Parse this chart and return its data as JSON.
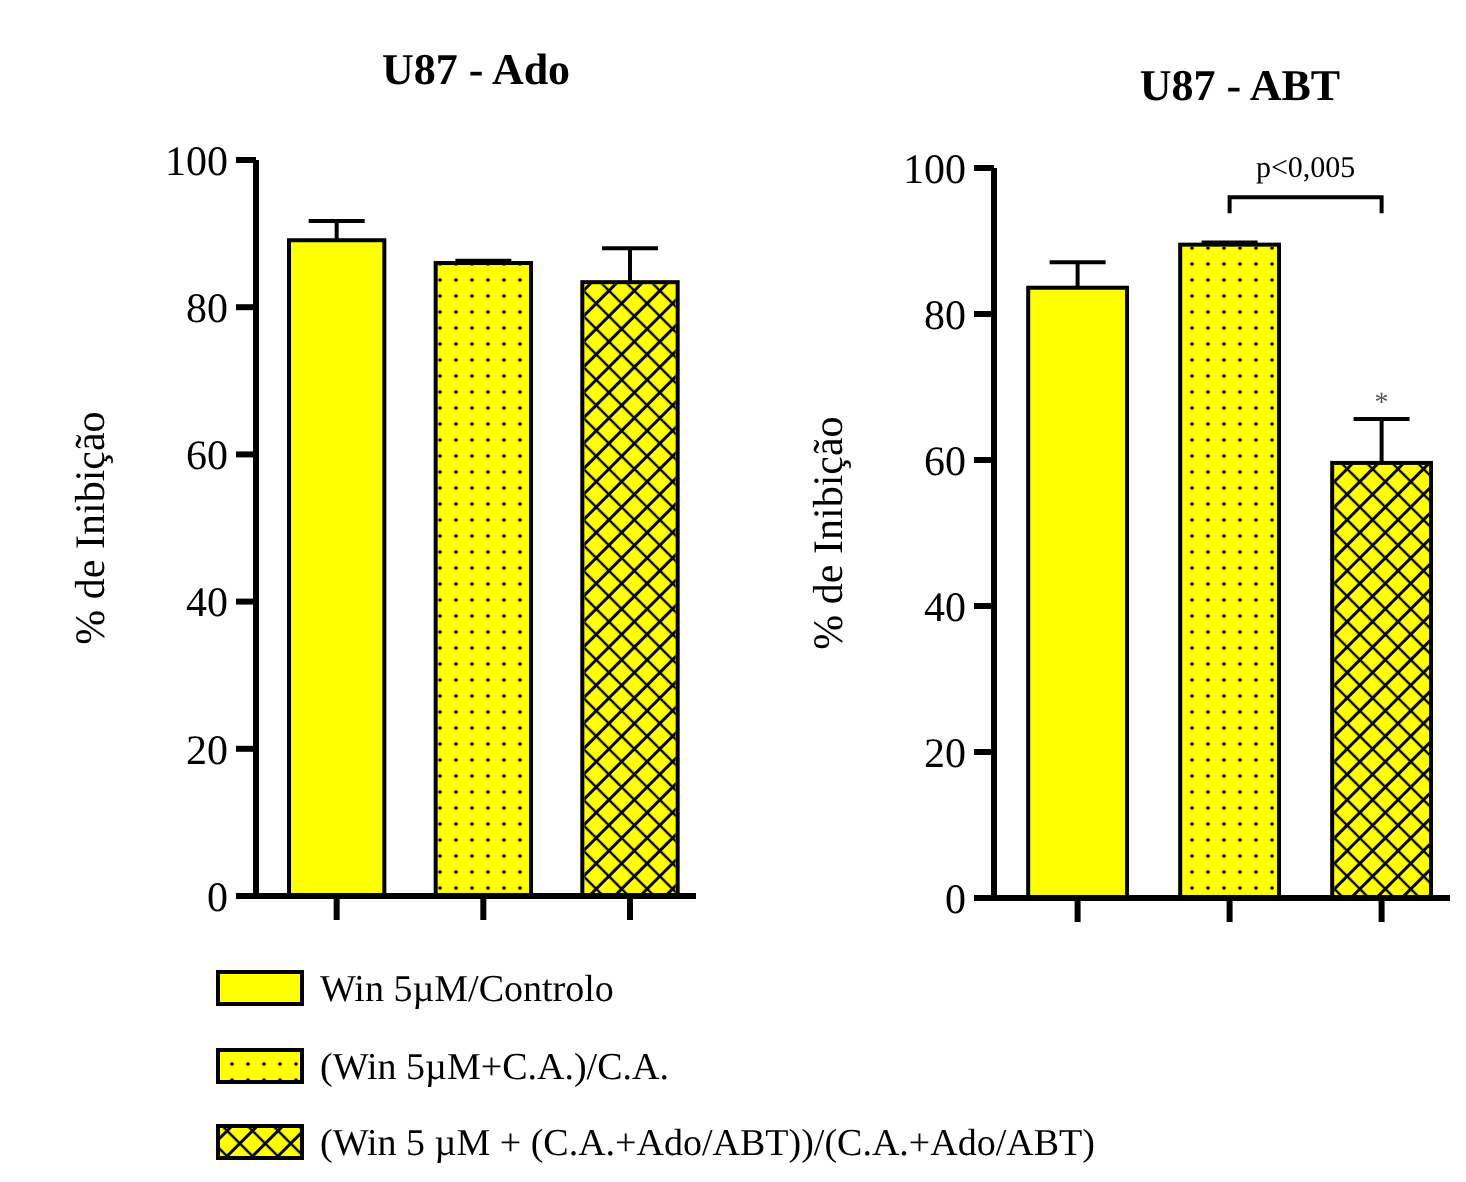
{
  "chart_data": [
    {
      "type": "bar",
      "title": "U87 - Ado",
      "ylabel": "% de Inibição",
      "categories": [
        null,
        null,
        null
      ],
      "ylim": [
        0,
        100
      ],
      "yticks": [
        0,
        20,
        40,
        60,
        80,
        100
      ],
      "legend": "bottom",
      "series": [
        {
          "name": "Win 5µM/Controlo",
          "color": "#ffff00",
          "values": [
            89.1,
            null,
            null
          ],
          "errors": [
            2.6,
            null,
            null
          ]
        },
        {
          "name": "(Win 5µM+C.A.)/C.A.",
          "color": "#ffff00",
          "values": [
            null,
            86.0,
            null
          ],
          "errors": [
            null,
            0.3,
            null
          ]
        },
        {
          "name": "(Win 5 µM + (C.A.+Ado/ABT))/(C.A.+Ado/ABT)",
          "color": "#ffff00",
          "values": [
            null,
            null,
            83.4
          ],
          "errors": [
            null,
            null,
            4.6
          ]
        }
      ]
    },
    {
      "type": "bar",
      "title": "U87 - ABT",
      "ylabel": "% de Inibição",
      "categories": [
        null,
        null,
        null
      ],
      "ylim": [
        0,
        100
      ],
      "yticks": [
        0,
        20,
        40,
        60,
        80,
        100
      ],
      "annotations": [
        "p<0,005",
        "*"
      ],
      "series": [
        {
          "color": "#ffff00",
          "values": [
            83.6,
            null,
            null
          ],
          "errors": [
            3.5,
            null,
            null
          ]
        },
        {
          "color": "#ffff00",
          "values": [
            null,
            89.5,
            null
          ],
          "errors": [
            null,
            0.3,
            null
          ]
        },
        {
          "color": "#ffff00",
          "values": [
            null,
            null,
            59.6
          ],
          "errors": [
            null,
            null,
            6.0
          ]
        }
      ]
    }
  ]
}
